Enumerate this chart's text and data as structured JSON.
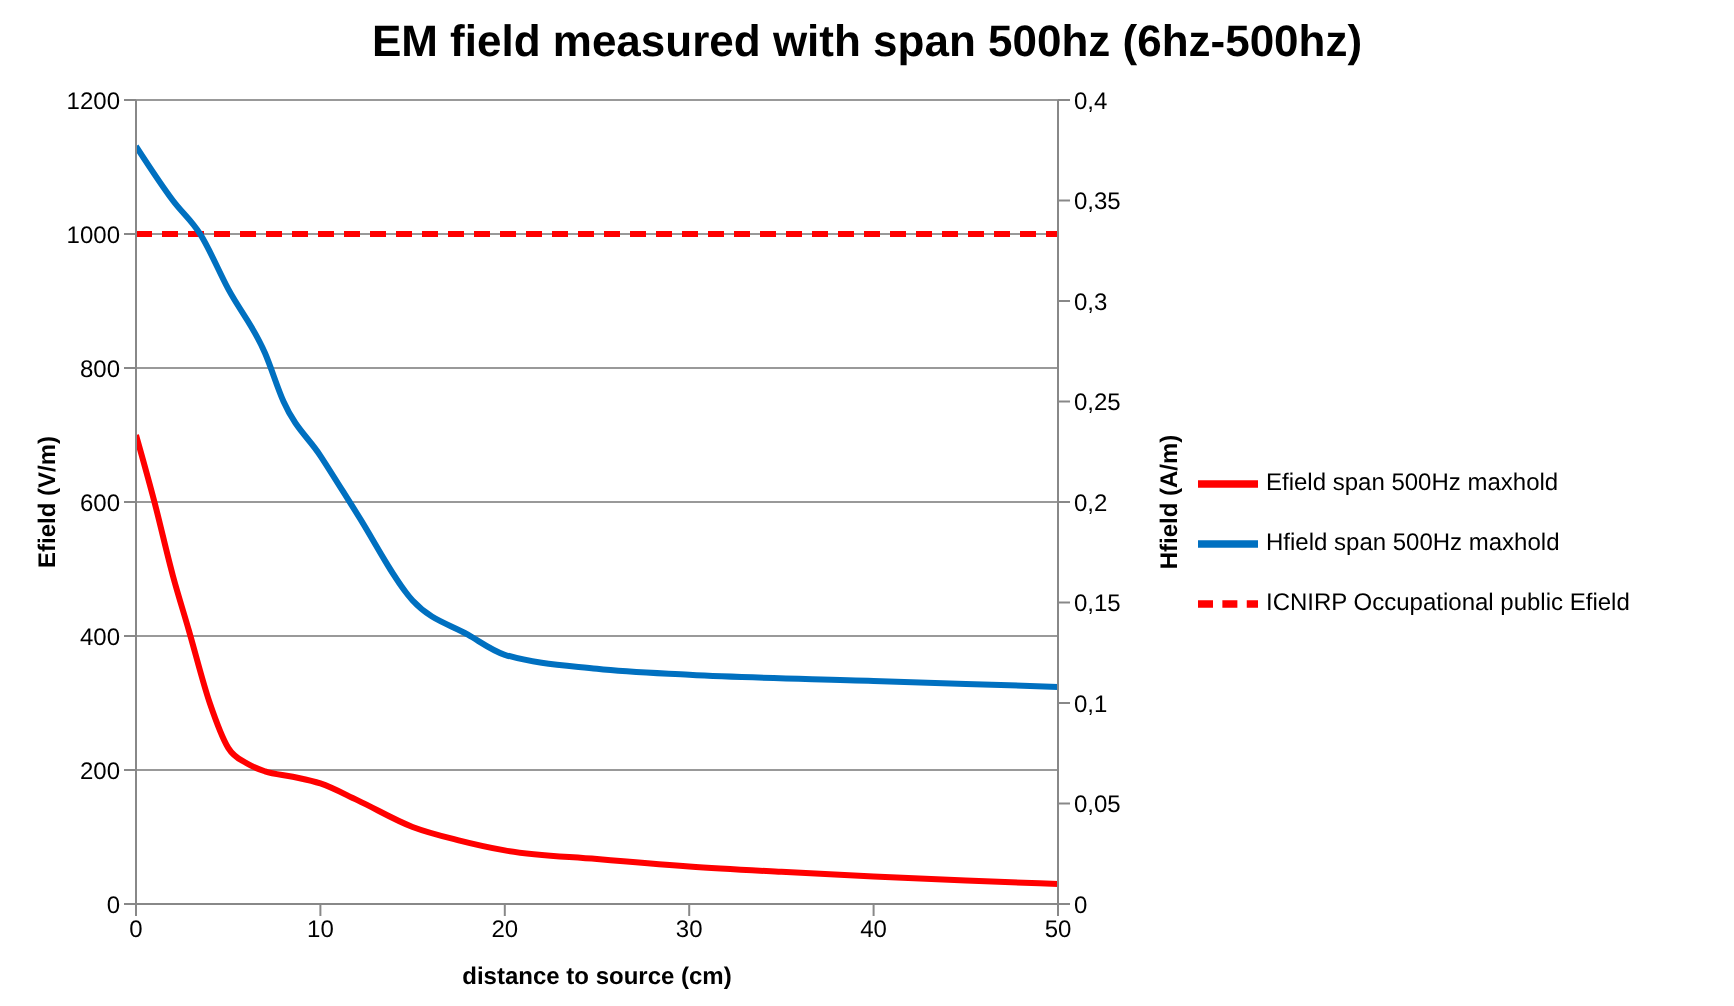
{
  "chart_data": {
    "type": "line",
    "title": "EM field measured with span 500hz (6hz-500hz)",
    "xlabel": "distance to source (cm)",
    "ylabel": "Efield (V/m)",
    "y2label": "Hfield (A/m)",
    "xlim": [
      0,
      50
    ],
    "xticks": [
      0,
      10,
      20,
      30,
      40,
      50
    ],
    "ylim": [
      0,
      1200
    ],
    "yticks": [
      0,
      200,
      400,
      600,
      800,
      1000,
      1200
    ],
    "y2lim": [
      0,
      0.4
    ],
    "y2ticks": [
      {
        "value": 0,
        "label": "0"
      },
      {
        "value": 0.05,
        "label": "0,05"
      },
      {
        "value": 0.1,
        "label": "0,1"
      },
      {
        "value": 0.15,
        "label": "0,15"
      },
      {
        "value": 0.2,
        "label": "0,2"
      },
      {
        "value": 0.25,
        "label": "0,25"
      },
      {
        "value": 0.3,
        "label": "0,3"
      },
      {
        "value": 0.35,
        "label": "0,35"
      },
      {
        "value": 0.4,
        "label": "0,4"
      }
    ],
    "grid": "y",
    "legend": "right",
    "marker": "none",
    "line_style": "solid",
    "series": [
      {
        "name": "Efield span 500Hz maxhold",
        "color": "#ff0000",
        "x": [
          0,
          1,
          2,
          2.85,
          4,
          5,
          6,
          7,
          8.5,
          10,
          12,
          15,
          17.5,
          20,
          25,
          30,
          35,
          40,
          45,
          50
        ],
        "values": [
          700,
          600,
          490,
          410,
          300,
          233,
          210,
          198,
          190,
          180,
          155,
          115,
          95,
          80,
          67,
          56,
          48,
          41,
          35,
          30
        ]
      },
      {
        "name": "ICNIRP Occupational public Efield",
        "color": "#ff0000",
        "line_style": "dashed",
        "x": [
          0,
          50
        ],
        "values": [
          1000,
          1000
        ]
      },
      {
        "name": "Hfield span 500Hz maxhold",
        "color": "#0070c0",
        "axis": "y2",
        "x": [
          0,
          2,
          3.5,
          5,
          7,
          8,
          10,
          12,
          15,
          18,
          20,
          25,
          30,
          40,
          50
        ],
        "values": [
          0.377,
          0.35,
          0.333,
          0.306,
          0.274,
          0.25,
          0.223,
          0.194,
          0.151,
          0.134,
          0.124,
          0.117,
          0.114,
          0.111,
          0.108
        ]
      }
    ]
  }
}
